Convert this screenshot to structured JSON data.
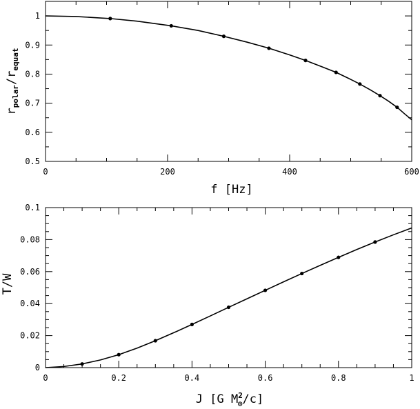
{
  "chart_data": [
    {
      "type": "line",
      "xlabel": "f [Hz]",
      "ylabel_main": "r",
      "ylabel_sub1": "polar",
      "ylabel_sep": "/r",
      "ylabel_sub2": "equat",
      "xlim": [
        0,
        600
      ],
      "ylim": [
        0.5,
        1.05
      ],
      "xticks": [
        0,
        200,
        400,
        600
      ],
      "xtick_labels": [
        "0",
        "200",
        "400",
        "600"
      ],
      "xminor_step": 50,
      "yticks": [
        0.5,
        0.6,
        0.7,
        0.8,
        0.9,
        1.0
      ],
      "ytick_labels": [
        "0.5",
        "0.6",
        "0.7",
        "0.8",
        "0.9",
        "1"
      ],
      "yminor_step": 0.05,
      "curve": {
        "x": [
          0,
          50,
          106,
          150,
          206,
          250,
          292,
          330,
          366,
          400,
          426,
          452,
          476,
          496,
          515,
          532,
          548,
          562,
          576,
          588,
          600
        ],
        "y": [
          1.0,
          0.998,
          0.991,
          0.982,
          0.966,
          0.95,
          0.93,
          0.91,
          0.889,
          0.866,
          0.847,
          0.826,
          0.806,
          0.786,
          0.766,
          0.746,
          0.726,
          0.707,
          0.686,
          0.664,
          0.643
        ]
      },
      "points": {
        "x": [
          106,
          206,
          292,
          366,
          426,
          476,
          515,
          548,
          576
        ],
        "y": [
          0.991,
          0.966,
          0.93,
          0.889,
          0.847,
          0.806,
          0.766,
          0.726,
          0.686
        ]
      }
    },
    {
      "type": "line",
      "xlabel_main": "J [G M",
      "xlabel_sup": "2",
      "xlabel_sub": "⊙",
      "xlabel_tail": "/c]",
      "ylabel": "T/W",
      "xlim": [
        0,
        1
      ],
      "ylim": [
        0,
        0.1
      ],
      "xticks": [
        0,
        0.2,
        0.4,
        0.6,
        0.8,
        1.0
      ],
      "xtick_labels": [
        "0",
        "0.2",
        "0.4",
        "0.6",
        "0.8",
        "1"
      ],
      "xminor_step": 0.05,
      "yticks": [
        0,
        0.02,
        0.04,
        0.06,
        0.08,
        0.1
      ],
      "ytick_labels": [
        "0",
        "0.02",
        "0.04",
        "0.06",
        "0.08",
        "0.1"
      ],
      "yminor_step": 0.005,
      "curve": {
        "x": [
          0,
          0.05,
          0.1,
          0.15,
          0.2,
          0.25,
          0.3,
          0.35,
          0.4,
          0.45,
          0.5,
          0.55,
          0.6,
          0.65,
          0.7,
          0.75,
          0.8,
          0.85,
          0.9,
          0.95,
          1.0
        ],
        "y": [
          0,
          0.0007,
          0.0023,
          0.0048,
          0.0081,
          0.0122,
          0.0168,
          0.0218,
          0.027,
          0.0323,
          0.0377,
          0.043,
          0.0483,
          0.0536,
          0.0588,
          0.0639,
          0.0689,
          0.0738,
          0.0785,
          0.083,
          0.0873
        ]
      },
      "points": {
        "x": [
          0.1,
          0.2,
          0.3,
          0.4,
          0.5,
          0.6,
          0.7,
          0.8,
          0.9
        ],
        "y": [
          0.0023,
          0.0081,
          0.0168,
          0.027,
          0.0377,
          0.0483,
          0.0588,
          0.0689,
          0.0785
        ]
      }
    }
  ]
}
